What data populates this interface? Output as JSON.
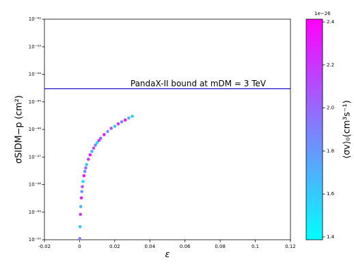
{
  "chart_data": {
    "type": "scatter",
    "x_label": "ε",
    "y_label": "σSIDM−p (cm²)",
    "annotation": {
      "text": "PandaX-II bound at mDM = 3 TeV",
      "y": 3e-45,
      "color": "#0000cc"
    },
    "xlim": [
      -0.02,
      0.12
    ],
    "xticks": [
      -0.02,
      0,
      0.02,
      0.04,
      0.06,
      0.08,
      0.1,
      0.12
    ],
    "ylim": [
      1e-50,
      1e-42
    ],
    "y_log": true,
    "yticks": [
      {
        "value": 1e-50,
        "label": "10⁻⁵⁰"
      },
      {
        "value": 1e-49,
        "label": "10⁻⁴⁹"
      },
      {
        "value": 1e-48,
        "label": "10⁻⁴⁸"
      },
      {
        "value": 1e-47,
        "label": "10⁻⁴⁷"
      },
      {
        "value": 1e-46,
        "label": "10⁻⁴⁶"
      },
      {
        "value": 1e-45,
        "label": "10⁻⁴⁵"
      },
      {
        "value": 1e-44,
        "label": "10⁻⁴⁴"
      },
      {
        "value": 1e-43,
        "label": "10⁻⁴³"
      },
      {
        "value": 1e-42,
        "label": "10⁻⁴²"
      }
    ],
    "x": [
      0.0001,
      0.0003,
      0.0005,
      0.0007,
      0.001,
      0.0013,
      0.0016,
      0.002,
      0.0025,
      0.003,
      0.0035,
      0.004,
      0.005,
      0.006,
      0.007,
      0.008,
      0.009,
      0.01,
      0.011,
      0.012,
      0.014,
      0.016,
      0.018,
      0.02,
      0.022,
      0.024,
      0.026,
      0.028,
      0.03
    ],
    "values": [
      1.1e-50,
      2.97e-50,
      8.3e-50,
      1.6e-49,
      3.3e-49,
      5.6e-49,
      8.4e-49,
      1.3e-48,
      2.1e-48,
      3e-48,
      4e-48,
      5.3e-48,
      8.3e-48,
      1.2e-47,
      1.6e-47,
      2.1e-47,
      2.7e-47,
      3.3e-47,
      4e-47,
      4.8e-47,
      6.5e-47,
      8.4e-47,
      1.1e-46,
      1.3e-46,
      1.6e-46,
      1.9e-46,
      2.2e-46,
      2.6e-46,
      3e-46
    ],
    "color_values": [
      1.9,
      1.6,
      2.2,
      1.7,
      2.3,
      1.8,
      2.1,
      1.5,
      2.3,
      1.9,
      2.0,
      1.6,
      2.2,
      2.3,
      1.7,
      2.1,
      1.9,
      1.5,
      2.2,
      2.0,
      2.3,
      1.8,
      2.1,
      1.6,
      2.2,
      1.9,
      2.3,
      1.7,
      1.6
    ],
    "colorbar": {
      "label": "⟨σv⟩₀(cm³s⁻¹)",
      "offset": "1e−26",
      "colormap": "cool",
      "lim": [
        1.387,
        2.413
      ],
      "ticks": [
        {
          "value": 1.4,
          "label": "1.4"
        },
        {
          "value": 1.6,
          "label": "1.6"
        },
        {
          "value": 1.8,
          "label": "1.8"
        },
        {
          "value": 2.0,
          "label": "2.0"
        },
        {
          "value": 2.2,
          "label": "2.2"
        },
        {
          "value": 2.4,
          "label": "2.4"
        }
      ]
    }
  }
}
